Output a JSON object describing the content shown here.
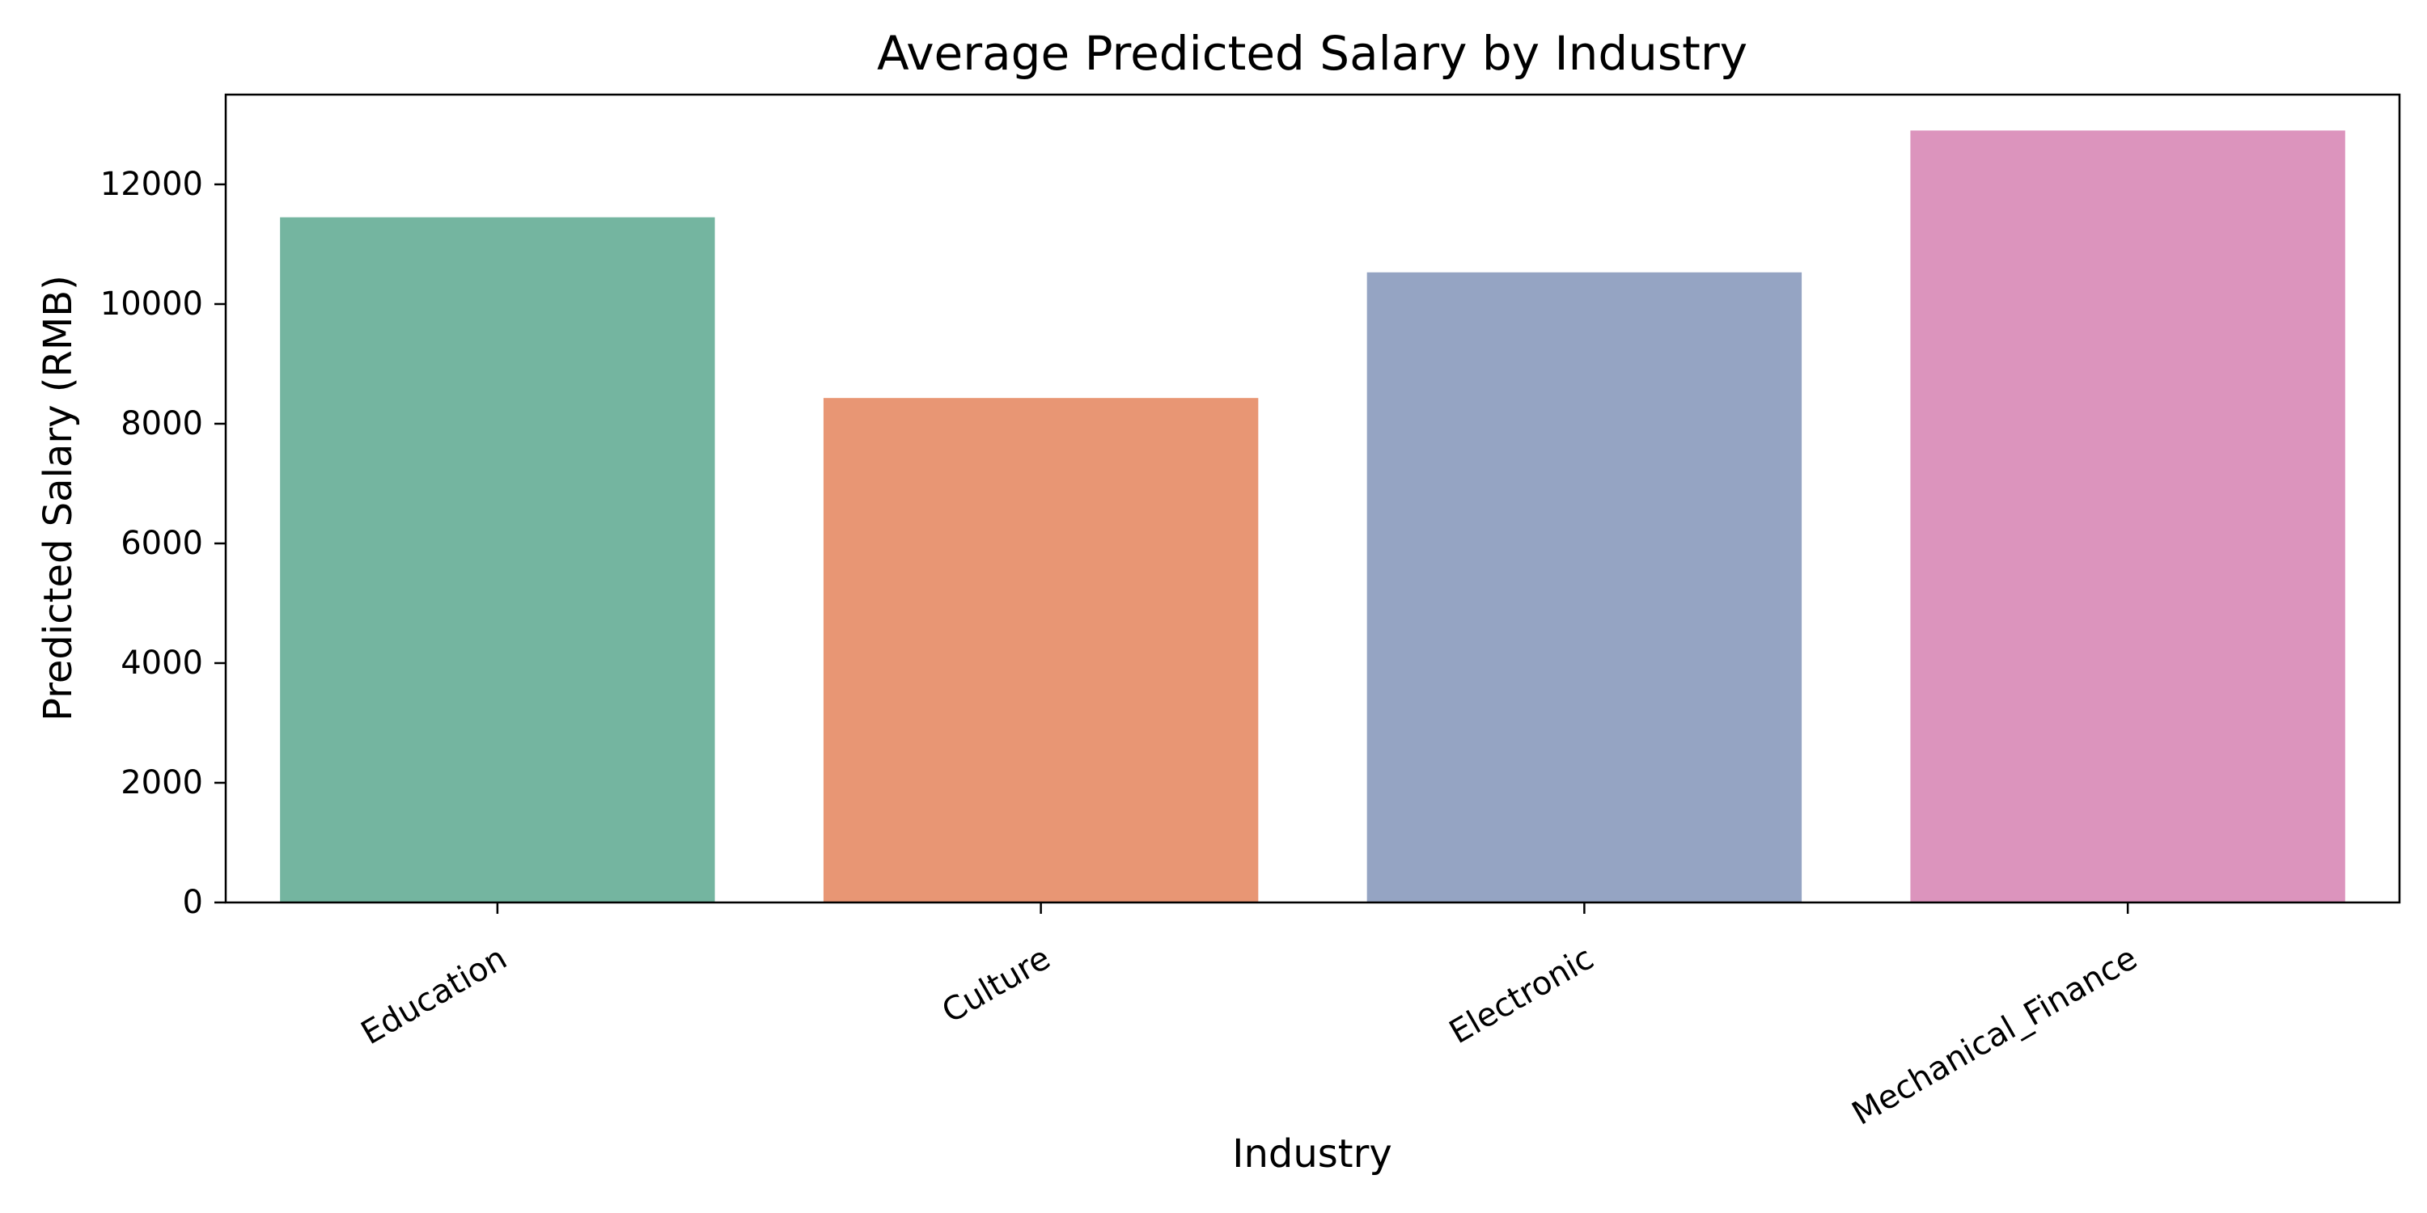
{
  "chart_data": {
    "type": "bar",
    "title": "Average Predicted Salary by Industry",
    "xlabel": "Industry",
    "ylabel": "Predicted Salary (RMB)",
    "categories": [
      "Education",
      "Culture",
      "Electronic",
      "Mechanical_Finance"
    ],
    "values": [
      11450,
      8430,
      10530,
      12900
    ],
    "colors": [
      "#74b5a0",
      "#e89674",
      "#95a4c3",
      "#dc94bd"
    ],
    "ylim": [
      0,
      13500
    ],
    "yticks": [
      0,
      2000,
      4000,
      6000,
      8000,
      10000,
      12000
    ],
    "grid": false,
    "legend": "none"
  }
}
